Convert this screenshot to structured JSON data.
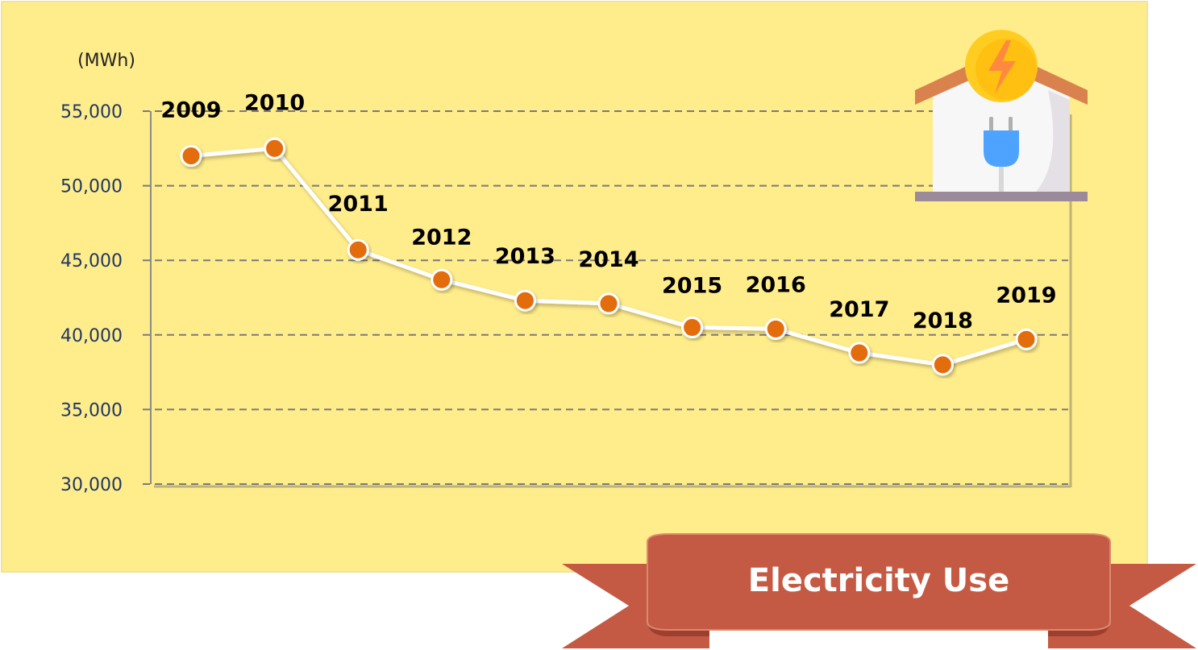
{
  "colors": {
    "panel_background": "#ffec8b",
    "gridline": "#7a7a7a",
    "line": "#ffffff",
    "marker": "#e36c09",
    "tick_text": "#1f3864",
    "banner": "#c55a44",
    "banner_text": "#ffffff",
    "house_roof": "#d9824d",
    "house_wall": "#f7f7f7",
    "bolt_circle": "#ffcc22",
    "plug": "#4da3ff"
  },
  "icons": [
    "house-icon",
    "lightning-bolt-icon",
    "power-plug-icon"
  ],
  "chart_data": {
    "type": "line",
    "title": "Electricity Use",
    "unit_label": "(MWh)",
    "xlabel": "",
    "ylabel": "",
    "ylim": [
      30000,
      55000
    ],
    "y_ticks": [
      30000,
      35000,
      40000,
      45000,
      50000,
      55000
    ],
    "y_tick_labels": [
      "30,000",
      "35,000",
      "40,000",
      "45,000",
      "50,000",
      "55,000"
    ],
    "grid": true,
    "legend": "none",
    "categories": [
      "2009",
      "2010",
      "2011",
      "2012",
      "2013",
      "2014",
      "2015",
      "2016",
      "2017",
      "2018",
      "2019"
    ],
    "series": [
      {
        "values": [
          52000,
          52500,
          45700,
          43700,
          42300,
          42100,
          40500,
          40400,
          38800,
          38000,
          39700
        ]
      }
    ]
  }
}
